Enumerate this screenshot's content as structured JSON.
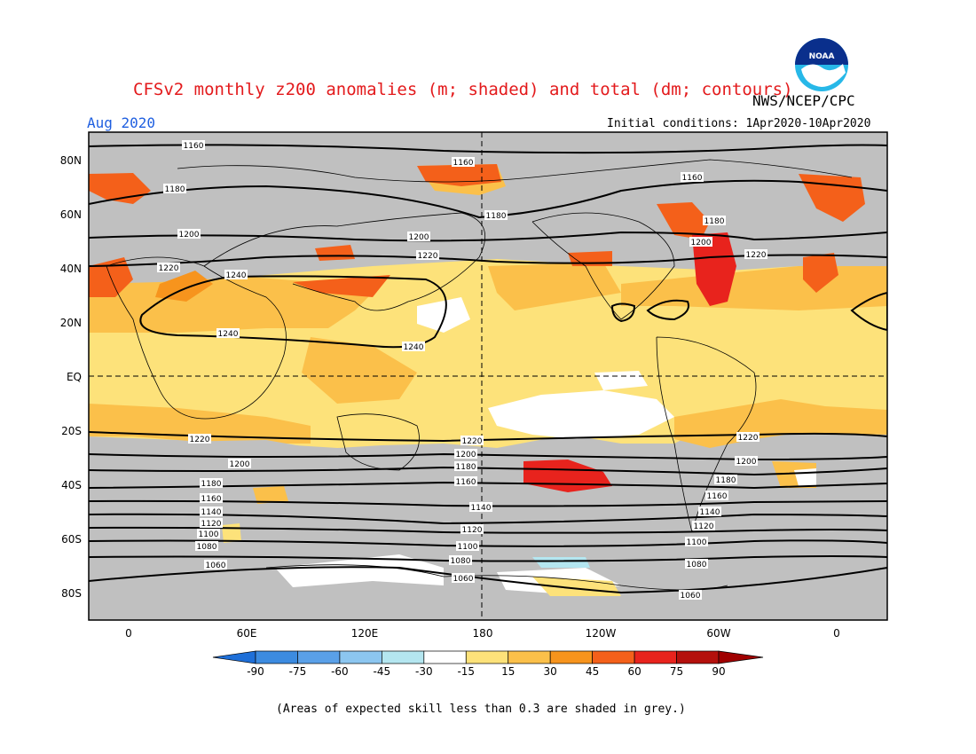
{
  "title": "CFSv2 monthly z200 anomalies (m; shaded) and total (dm; contours)",
  "agency": "NWS/NCEP/CPC",
  "logo_text": "NOAA",
  "month": "Aug 2020",
  "initial_conditions": "Initial conditions: 1Apr2020-10Apr2020",
  "footnote": "(Areas of expected skill less than 0.3 are shaded in grey.)",
  "map": {
    "lat_labels": [
      "80N",
      "60N",
      "40N",
      "20N",
      "EQ",
      "20S",
      "40S",
      "60S",
      "80S"
    ],
    "lon_labels": [
      "0",
      "60E",
      "120E",
      "180",
      "120W",
      "60W",
      "0"
    ],
    "colors": {
      "grey": "#c0c0c0",
      "ocean_bg": "#c0c0c0"
    }
  },
  "colorbar": {
    "ticks": [
      "-90",
      "-75",
      "-60",
      "-45",
      "-30",
      "-15",
      "15",
      "30",
      "45",
      "60",
      "75",
      "90"
    ],
    "colors": [
      "#1e6fd8",
      "#3c8be0",
      "#5aa0e8",
      "#8cc6f0",
      "#b4e6f0",
      "#ffffff",
      "#fde27a",
      "#fbc04a",
      "#f7941d",
      "#f4601a",
      "#e8231d",
      "#b4100c",
      "#a00000"
    ]
  },
  "contour_labels": [
    "1160",
    "1180",
    "1200",
    "1220",
    "1240",
    "1240",
    "1240",
    "1220",
    "1200",
    "1180",
    "1160",
    "1160",
    "1180",
    "1200",
    "1220",
    "1220",
    "1200",
    "1180",
    "1160",
    "1140",
    "1120",
    "1100",
    "1080",
    "1060",
    "1220",
    "1200",
    "1180",
    "1160",
    "1140",
    "1120",
    "1100",
    "1080",
    "1060",
    "1220",
    "1200",
    "1180",
    "1160",
    "1140",
    "1120",
    "1100",
    "1080",
    "1060"
  ]
}
